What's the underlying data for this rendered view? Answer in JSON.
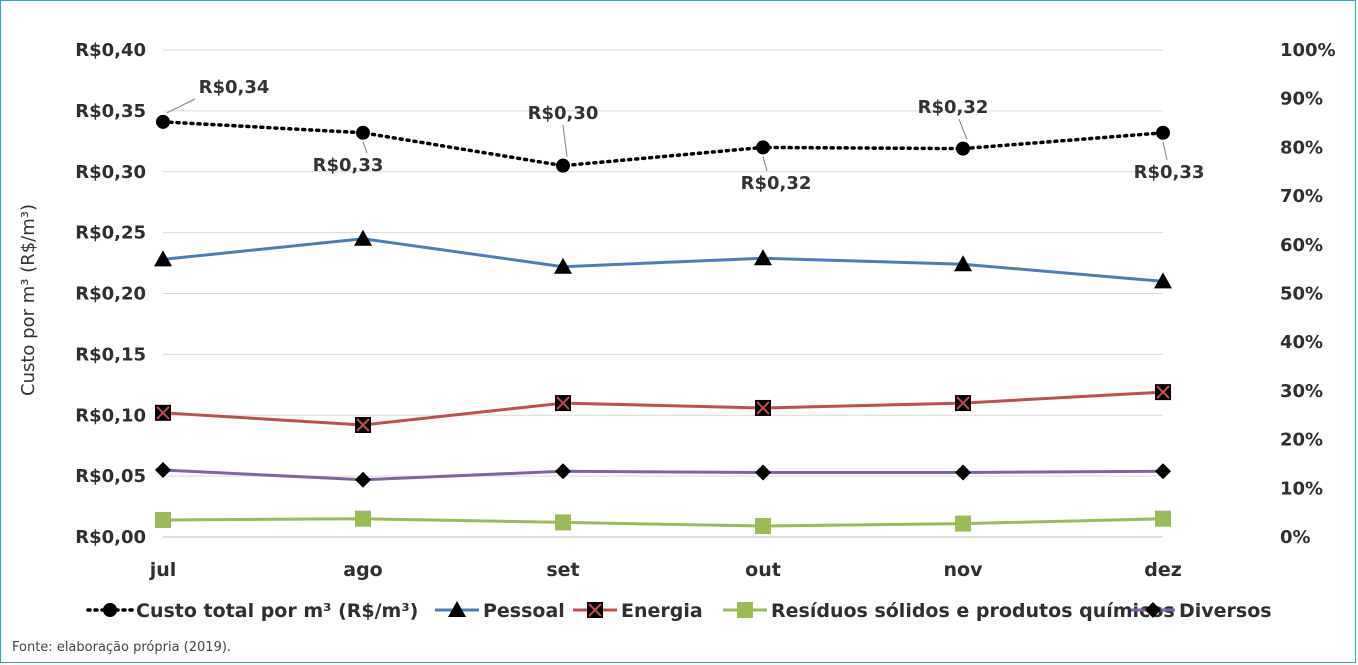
{
  "source_note": "Fonte: elaboração própria (2019).",
  "chart_data": {
    "type": "line",
    "categories": [
      "jul",
      "ago",
      "set",
      "out",
      "nov",
      "dez"
    ],
    "ylabel": "Custo por m³ (R$/m³)",
    "ylim": [
      0,
      0.4
    ],
    "y_ticks": [
      "R$0,00",
      "R$0,05",
      "R$0,10",
      "R$0,15",
      "R$0,20",
      "R$0,25",
      "R$0,30",
      "R$0,35",
      "R$0,40"
    ],
    "y2lim": [
      0,
      100
    ],
    "y2_ticks": [
      "0%",
      "10%",
      "20%",
      "30%",
      "40%",
      "50%",
      "60%",
      "70%",
      "80%",
      "90%",
      "100%"
    ],
    "grid": true,
    "legend_position": "bottom",
    "series": [
      {
        "name": "Custo total por m³ (R$/m³)",
        "values": [
          0.341,
          0.332,
          0.305,
          0.32,
          0.319,
          0.332
        ],
        "data_labels": [
          "R$0,34",
          "R$0,33",
          "R$0,30",
          "R$0,32",
          "R$0,32",
          "R$0,33"
        ],
        "label_positions": [
          "above",
          "below",
          "above",
          "below",
          "above",
          "below"
        ],
        "color": "#000000",
        "style": "dotted",
        "marker": "circle"
      },
      {
        "name": "Pessoal",
        "values": [
          0.228,
          0.245,
          0.222,
          0.229,
          0.224,
          0.21
        ],
        "color": "#4a7ebb",
        "style": "solid",
        "marker": "triangle"
      },
      {
        "name": "Energia",
        "values": [
          0.102,
          0.092,
          0.11,
          0.106,
          0.11,
          0.119
        ],
        "color": "#c0504d",
        "style": "solid",
        "marker": "x-square"
      },
      {
        "name": "Resíduos sólidos e produtos químicos",
        "values": [
          0.014,
          0.015,
          0.012,
          0.009,
          0.011,
          0.015
        ],
        "color": "#9bbb59",
        "style": "solid",
        "marker": "square"
      },
      {
        "name": "Diversos",
        "values": [
          0.055,
          0.047,
          0.054,
          0.053,
          0.053,
          0.054
        ],
        "color": "#8064a2",
        "style": "solid",
        "marker": "diamond"
      }
    ]
  }
}
